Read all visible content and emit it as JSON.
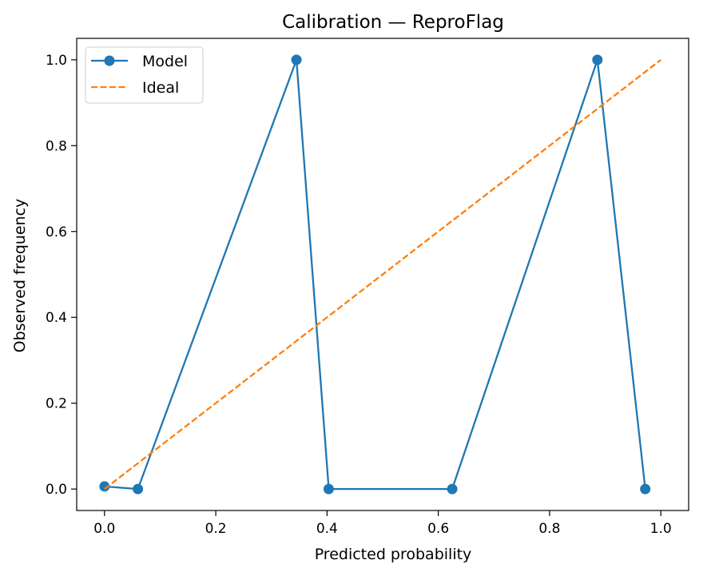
{
  "chart_data": {
    "type": "line",
    "title": "Calibration — ReproFlag",
    "xlabel": "Predicted probability",
    "ylabel": "Observed frequency",
    "xlim": [
      -0.05,
      1.05
    ],
    "ylim": [
      -0.05,
      1.05
    ],
    "xticks": [
      0.0,
      0.2,
      0.4,
      0.6,
      0.8,
      1.0
    ],
    "yticks": [
      0.0,
      0.2,
      0.4,
      0.6,
      0.8,
      1.0
    ],
    "xtick_labels": [
      "0.0",
      "0.2",
      "0.4",
      "0.6",
      "0.8",
      "1.0"
    ],
    "ytick_labels": [
      "0.0",
      "0.2",
      "0.4",
      "0.6",
      "0.8",
      "1.0"
    ],
    "grid": false,
    "legend_position": "top-left",
    "series": [
      {
        "name": "Model",
        "style": "solid-line-with-circle-markers",
        "color": "#1f77b4",
        "x": [
          0.0,
          0.06,
          0.345,
          0.403,
          0.625,
          0.886,
          0.972
        ],
        "y": [
          0.006,
          0.0,
          1.0,
          0.0,
          0.0,
          1.0,
          0.0
        ]
      },
      {
        "name": "Ideal",
        "style": "dashed-line",
        "color": "#ff7f0e",
        "x": [
          0.0,
          1.0
        ],
        "y": [
          0.0,
          1.0
        ]
      }
    ]
  }
}
